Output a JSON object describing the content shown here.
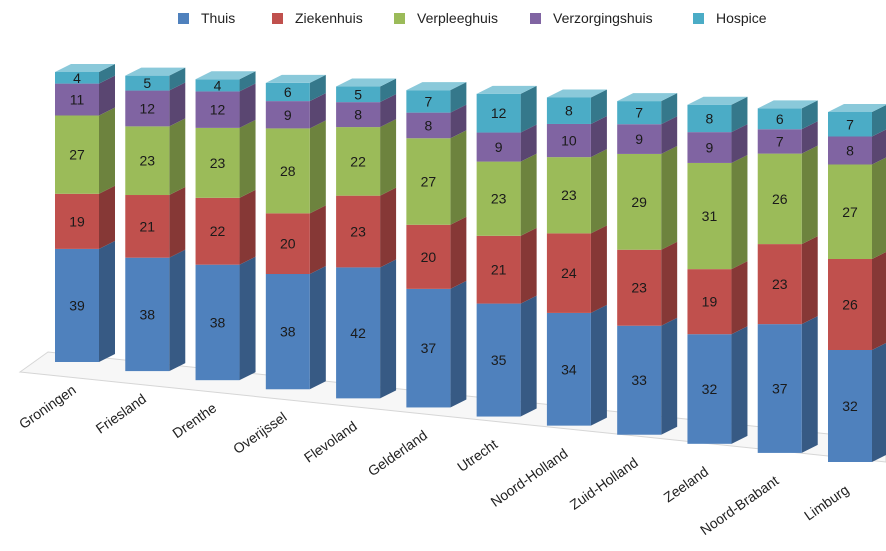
{
  "chart_data": {
    "type": "bar",
    "stacked": true,
    "style": "3d-columns",
    "title": "",
    "xlabel": "",
    "ylabel": "",
    "legend_position": "top",
    "grid": false,
    "categories": [
      "Groningen",
      "Friesland",
      "Drenthe",
      "Overijssel",
      "Flevoland",
      "Gelderland",
      "Utrecht",
      "Noord-Holland",
      "Zuid-Holland",
      "Zeeland",
      "Noord-Brabant",
      "Limburg"
    ],
    "series": [
      {
        "name": "Thuis",
        "color": "#4F81BD",
        "values": [
          39,
          38,
          38,
          38,
          42,
          37,
          35,
          34,
          33,
          32,
          37,
          32
        ]
      },
      {
        "name": "Ziekenhuis",
        "color": "#C0504D",
        "values": [
          19,
          21,
          22,
          20,
          23,
          20,
          21,
          24,
          23,
          19,
          23,
          26
        ]
      },
      {
        "name": "Verpleeghuis",
        "color": "#9BBB59",
        "values": [
          27,
          23,
          23,
          28,
          22,
          27,
          23,
          23,
          29,
          31,
          26,
          27
        ]
      },
      {
        "name": "Verzorgingshuis",
        "color": "#8064A2",
        "values": [
          11,
          12,
          12,
          9,
          8,
          8,
          9,
          10,
          9,
          9,
          7,
          8
        ]
      },
      {
        "name": "Hospice",
        "color": "#4BACC6",
        "values": [
          4,
          5,
          4,
          6,
          5,
          7,
          12,
          8,
          7,
          8,
          6,
          7
        ]
      }
    ]
  }
}
